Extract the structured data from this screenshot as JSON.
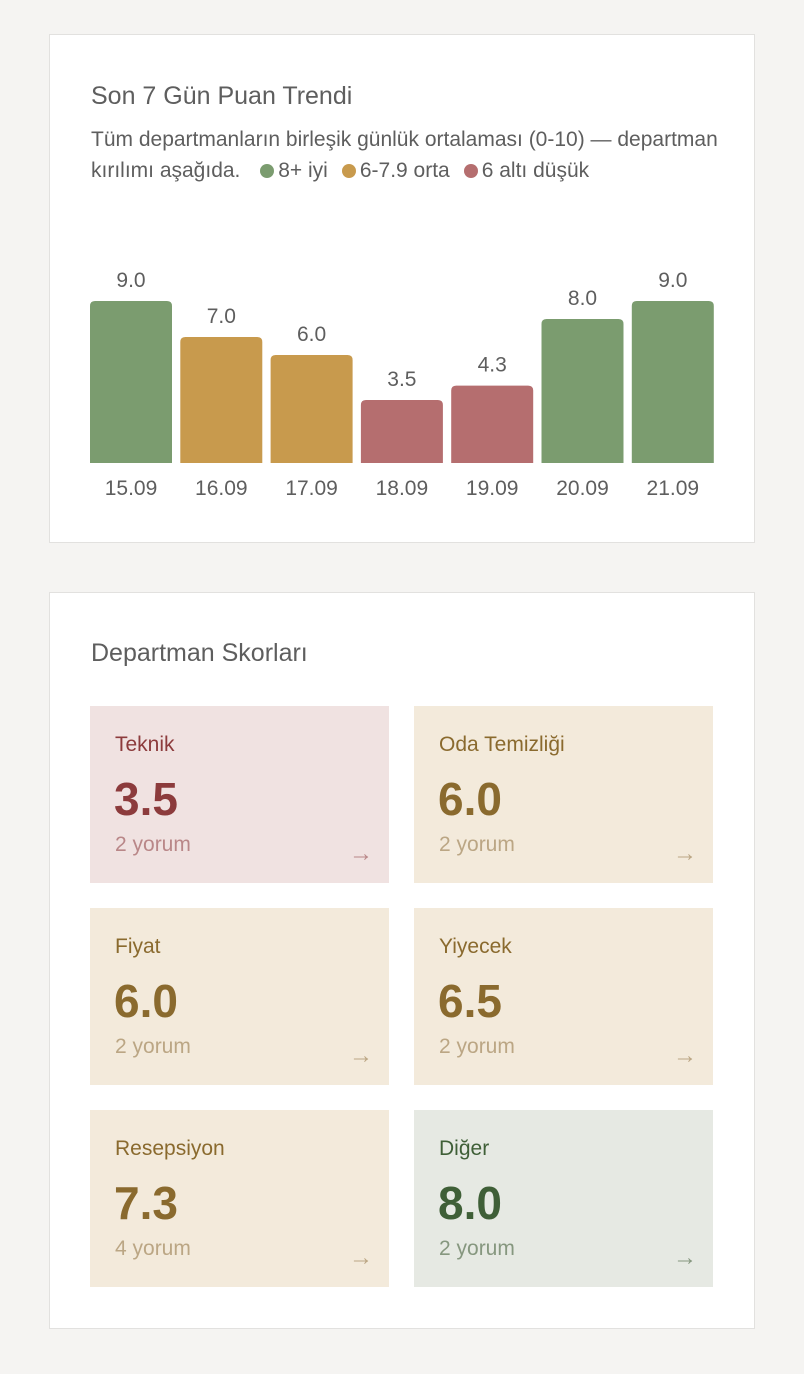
{
  "chart_data": {
    "type": "bar",
    "title": "Son 7 Gün Puan Trendi",
    "subtitle": "Tüm departmanların birleşik günlük ortalaması (0-10) — departman kırılımı aşağıda.",
    "legend": [
      {
        "name": "8+ iyi",
        "color": "#7b9c6f"
      },
      {
        "name": "6-7.9 orta",
        "color": "#c89a4d"
      },
      {
        "name": "6 altı düşük",
        "color": "#b56e6f"
      }
    ],
    "categories": [
      "15.09",
      "16.09",
      "17.09",
      "18.09",
      "19.09",
      "20.09",
      "21.09"
    ],
    "values": [
      9,
      7,
      6,
      3.5,
      4.3,
      8,
      9
    ],
    "value_labels": [
      "9.0",
      "7.0",
      "6.0",
      "3.5",
      "4.3",
      "8.0",
      "9.0"
    ],
    "colors": [
      "#7b9c6f",
      "#c89a4d",
      "#c89a4d",
      "#b56e6f",
      "#b56e6f",
      "#7b9c6f",
      "#7b9c6f"
    ],
    "ylim": [
      0,
      10
    ]
  },
  "departments": {
    "title": "Departman Skorları",
    "items": [
      {
        "name": "Teknik",
        "score": "3.5",
        "comments": "2 yorum",
        "arrow": "→",
        "background": "#f0e2e1",
        "color": "#8c3b3c",
        "muted": "#b98788"
      },
      {
        "name": "Oda Temizliği",
        "score": "6.0",
        "comments": "2 yorum",
        "arrow": "→",
        "background": "#f3eadb",
        "color": "#8a6a2e",
        "muted": "#bba684"
      },
      {
        "name": "Fiyat",
        "score": "6.0",
        "comments": "2 yorum",
        "arrow": "→",
        "background": "#f3eadb",
        "color": "#8a6a2e",
        "muted": "#bba684"
      },
      {
        "name": "Yiyecek",
        "score": "6.5",
        "comments": "2 yorum",
        "arrow": "→",
        "background": "#f3eadb",
        "color": "#8a6a2e",
        "muted": "#bba684"
      },
      {
        "name": "Resepsiyon",
        "score": "7.3",
        "comments": "4 yorum",
        "arrow": "→",
        "background": "#f3eadb",
        "color": "#8a6a2e",
        "muted": "#bba684"
      },
      {
        "name": "Diğer",
        "score": "8.0",
        "comments": "2 yorum",
        "arrow": "→",
        "background": "#e6e9e3",
        "color": "#3f5f37",
        "muted": "#86977f"
      }
    ]
  }
}
